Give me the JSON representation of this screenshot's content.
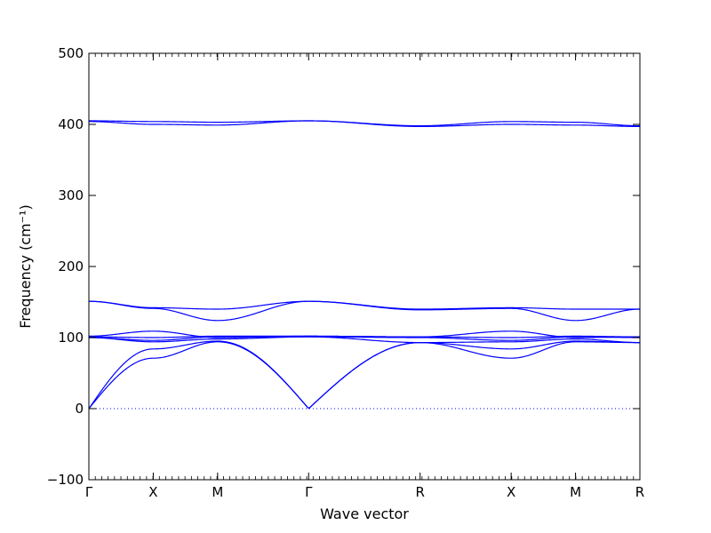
{
  "chart_data": {
    "type": "line",
    "title": "",
    "xlabel": "Wave vector",
    "ylabel": "Frequency (cm⁻¹)",
    "ylim": [
      -100,
      500
    ],
    "yticks": [
      -100,
      0,
      100,
      200,
      300,
      400,
      500
    ],
    "xticks": [
      {
        "label": "Γ",
        "q": 0
      },
      {
        "label": "X",
        "q": 0.5
      },
      {
        "label": "M",
        "q": 1.0
      },
      {
        "label": "Γ",
        "q": 1.7071
      },
      {
        "label": "R",
        "q": 2.5731
      },
      {
        "label": "X",
        "q": 3.2802
      },
      {
        "label": "M",
        "q": 3.7802
      },
      {
        "label": "R",
        "q": 4.2802
      }
    ],
    "xlim": [
      0,
      4.2802
    ],
    "grid": false,
    "zero_line": {
      "y": 0,
      "style": "dotted"
    },
    "series_color": "#0000ff",
    "series": [
      {
        "x": [
          0,
          0.5,
          1.0,
          1.7071,
          2.5731,
          3.2802,
          3.7802,
          4.2802
        ],
        "y": [
          405,
          404,
          403,
          405,
          398,
          404,
          403,
          398
        ]
      },
      {
        "x": [
          0,
          0.5,
          1.0,
          1.7071,
          2.5731,
          3.2802,
          3.7802,
          4.2802
        ],
        "y": [
          404,
          400,
          399,
          405,
          397,
          400,
          399,
          397
        ]
      },
      {
        "x": [
          0,
          0.5,
          1.0,
          1.7071,
          2.5731,
          3.2802,
          3.7802,
          4.2802
        ],
        "y": [
          151,
          142,
          140,
          151,
          140,
          142,
          140,
          140
        ]
      },
      {
        "x": [
          0,
          0.5,
          1.0,
          1.7071,
          2.5731,
          3.2802,
          3.7802,
          4.2802
        ],
        "y": [
          151,
          141,
          124,
          151,
          139,
          141,
          124,
          140
        ]
      },
      {
        "x": [
          0,
          0.5,
          1.0,
          1.7071,
          2.5731,
          3.2802,
          3.7802,
          4.2802
        ],
        "y": [
          102,
          109,
          100,
          102,
          101,
          109,
          100,
          101
        ]
      },
      {
        "x": [
          0,
          0.5,
          1.0,
          1.7071,
          2.5731,
          3.2802,
          3.7802,
          4.2802
        ],
        "y": [
          101,
          100,
          102,
          102,
          101,
          100,
          102,
          101
        ]
      },
      {
        "x": [
          0,
          0.5,
          1.0,
          1.7071,
          2.5731,
          3.2802,
          3.7802,
          4.2802
        ],
        "y": [
          100,
          96,
          101,
          101,
          100,
          96,
          101,
          100
        ]
      },
      {
        "x": [
          0,
          0.5,
          1.0,
          1.7071,
          2.5731,
          3.2802,
          3.7802,
          4.2802
        ],
        "y": [
          100,
          94,
          98,
          101,
          93,
          94,
          98,
          93
        ]
      },
      {
        "x": [
          0,
          0.5,
          1.0,
          1.7071,
          2.5731,
          3.2802,
          3.7802,
          4.2802
        ],
        "y": [
          0,
          84,
          95,
          0,
          93,
          84,
          95,
          93
        ]
      },
      {
        "x": [
          0,
          0.5,
          1.0,
          1.7071,
          2.5731,
          3.2802,
          3.7802,
          4.2802
        ],
        "y": [
          0,
          71,
          94,
          0,
          93,
          71,
          94,
          93
        ]
      }
    ]
  }
}
